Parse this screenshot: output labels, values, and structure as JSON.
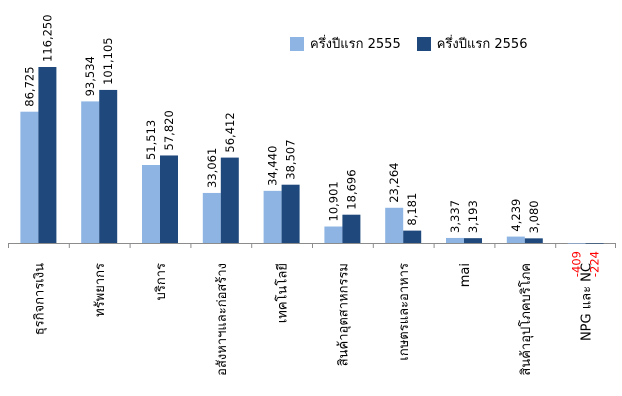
{
  "chart_data": {
    "type": "bar",
    "categories": [
      "ธุรกิจการเงิน",
      "ทรัพยากร",
      "บริการ",
      "อสังหาฯและก่อสร้าง",
      "เทคโนโลยี",
      "สินค้าอุตสาหกรรม",
      "เกษตรและอาหาร",
      "mai",
      "สินค้าอุปโภคบริโภค",
      "NPG และ NC"
    ],
    "series": [
      {
        "name": "ครึ่งปีแรก 2555",
        "color": "#8eb4e3",
        "values": [
          86725,
          93534,
          51513,
          33061,
          34440,
          10901,
          23264,
          3337,
          4239,
          -409
        ],
        "labels": [
          "86,725",
          "93,534",
          "51,513",
          "33,061",
          "34,440",
          "10,901",
          "23,264",
          "3,337",
          "4,239",
          "-409"
        ]
      },
      {
        "name": "ครึ่งปีแรก 2556",
        "color": "#1f497d",
        "values": [
          116250,
          101105,
          57820,
          56412,
          38507,
          18696,
          8181,
          3193,
          3080,
          -224
        ],
        "labels": [
          "116,250",
          "101,105",
          "57,820",
          "56,412",
          "38,507",
          "18,696",
          "8,181",
          "3,193",
          "3,080",
          "-224"
        ]
      }
    ],
    "negative_label_color": "#ff0000",
    "legend_position": "top-right",
    "grid": false
  }
}
